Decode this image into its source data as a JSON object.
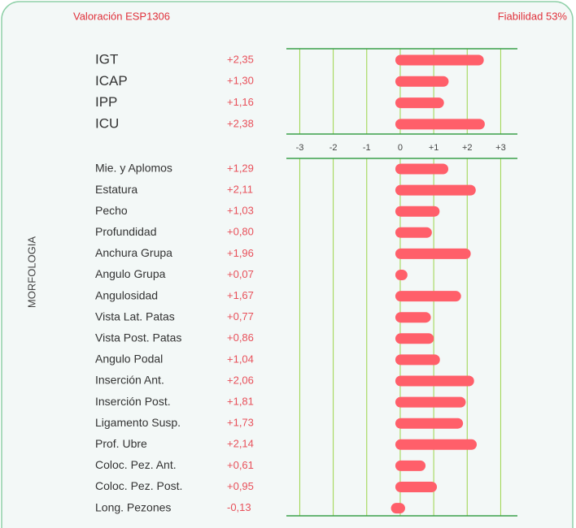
{
  "chart_data": {
    "type": "bar",
    "title": "Valoración ESP1306",
    "subtitle": "Fiabilidad 53%",
    "ylabel": "MORFOLOGIA",
    "xlim": [
      -3.4,
      3.5
    ],
    "xticks": [
      -3,
      -2,
      -1,
      0,
      {
        "value": 1,
        "label": "+1"
      },
      {
        "value": 2,
        "label": "+2"
      },
      {
        "value": 3,
        "label": "+3"
      }
    ],
    "color": "#ff5f6a",
    "grid": true,
    "panels": [
      {
        "categories": [
          "IGT",
          "ICAP",
          "IPP",
          "ICU"
        ],
        "values": [
          2.35,
          1.3,
          1.16,
          2.38
        ],
        "value_labels": [
          "+2,35",
          "+1,30",
          "+1,16",
          "+2,38"
        ]
      },
      {
        "categories": [
          "Mie. y Aplomos",
          "Estatura",
          "Pecho",
          "Profundidad",
          "Anchura Grupa",
          "Angulo Grupa",
          "Angulosidad",
          "Vista Lat. Patas",
          "Vista Post. Patas",
          "Angulo Podal",
          "Inserción Ant.",
          "Inserción Post.",
          "Ligamento Susp.",
          "Prof.  Ubre",
          "Coloc. Pez. Ant.",
          "Coloc. Pez. Post.",
          "Long. Pezones"
        ],
        "values": [
          1.29,
          2.11,
          1.03,
          0.8,
          1.96,
          0.07,
          1.67,
          0.77,
          0.86,
          1.04,
          2.06,
          1.81,
          1.73,
          2.14,
          0.61,
          0.95,
          -0.13
        ],
        "value_labels": [
          "+1,29",
          "+2,11",
          "+1,03",
          "+0,80",
          "+1,96",
          "+0,07",
          "+1,67",
          "+0,77",
          "+0,86",
          "+1,04",
          "+2,06",
          "+1,81",
          "+1,73",
          "+2,14",
          "+0,61",
          "+0,95",
          "-0,13"
        ]
      }
    ]
  }
}
